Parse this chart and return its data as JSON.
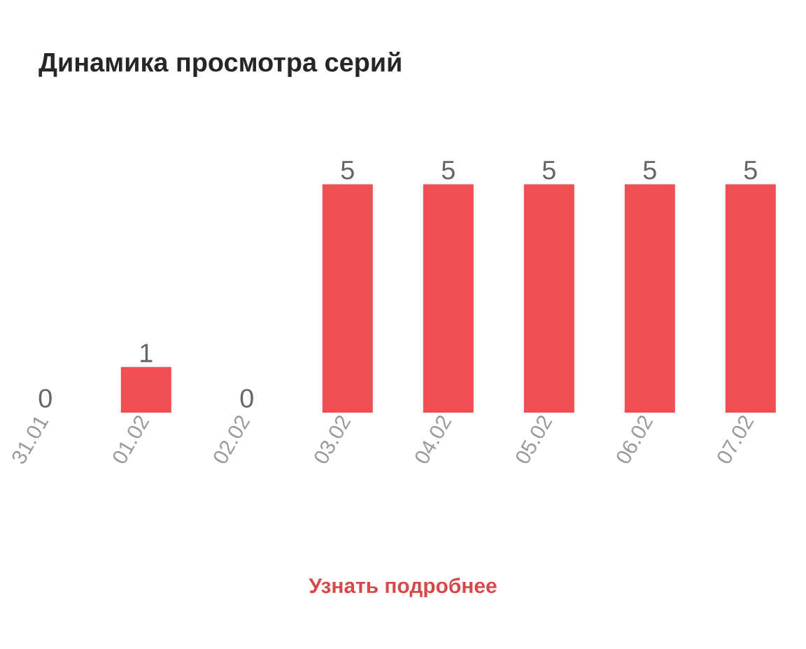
{
  "chart_data": {
    "type": "bar",
    "title": "Динамика просмотра серий",
    "categories": [
      "31.01",
      "01.02",
      "02.02",
      "03.02",
      "04.02",
      "05.02",
      "06.02",
      "07.02"
    ],
    "values": [
      0,
      1,
      0,
      5,
      5,
      5,
      5,
      5
    ],
    "value_labels": [
      "0",
      "1",
      "0",
      "5",
      "5",
      "5",
      "5",
      "5"
    ],
    "color": "#ef5052",
    "annotations": [
      "Узнать подробнее"
    ]
  }
}
